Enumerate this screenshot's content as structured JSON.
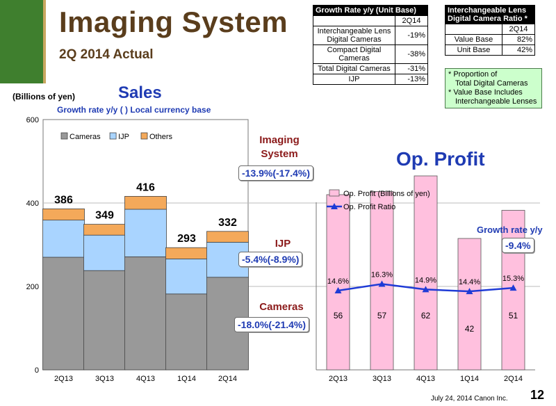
{
  "header": {
    "title": "Imaging System",
    "subtitle": "2Q 2014 Actual"
  },
  "growth_table": {
    "title": "Growth Rate y/y  (Unit Base)",
    "period": "2Q14",
    "rows": [
      {
        "label": "Interchangeable Lens Digital Cameras",
        "value": "-19%"
      },
      {
        "label": "Compact Digital Cameras",
        "value": "-38%"
      },
      {
        "label": "Total Digital Cameras",
        "value": "-31%"
      },
      {
        "label": "IJP",
        "value": "-13%"
      }
    ]
  },
  "ratio_table": {
    "title": "Interchangeable Lens Digital Camera Ratio *",
    "period": "2Q14",
    "rows": [
      {
        "label": "Value Base",
        "value": "82%"
      },
      {
        "label": "Unit Base",
        "value": "42%"
      }
    ]
  },
  "notes": [
    "* Proportion of",
    "Total Digital Cameras",
    "* Value Base Includes",
    "Interchangeable Lenses"
  ],
  "sales": {
    "unit": "(Billions of yen)",
    "title": "Sales",
    "subtitle": "Growth rate y/y  ( ) Local currency base"
  },
  "segments": {
    "imaging_label": "Imaging System",
    "imaging_growth": "-13.9%(-17.4%)",
    "ijp_label": "IJP",
    "ijp_growth": "-5.4%(-8.9%)",
    "cameras_label": "Cameras",
    "cameras_growth": "-18.0%(-21.4%)"
  },
  "op_profit": {
    "title": "Op. Profit",
    "growth_label": "Growth rate y/y",
    "growth_value": "-9.4%"
  },
  "chart_data": [
    {
      "type": "bar",
      "stacked": true,
      "categories": [
        "2Q13",
        "3Q13",
        "4Q13",
        "1Q14",
        "2Q14"
      ],
      "series": [
        {
          "name": "Cameras",
          "values": [
            270,
            238,
            271,
            182,
            222
          ],
          "color": "#999999"
        },
        {
          "name": "IJP",
          "values": [
            89,
            85,
            114,
            84,
            84
          ],
          "color": "#a9d4ff"
        },
        {
          "name": "Others",
          "values": [
            27,
            26,
            31,
            27,
            26
          ],
          "color": "#f4a95a"
        }
      ],
      "totals": [
        386,
        349,
        416,
        293,
        332
      ],
      "ylim": [
        0,
        600
      ],
      "yticks": [
        0,
        200,
        400,
        600
      ],
      "grid": true,
      "legend": "top-left"
    },
    {
      "type": "bar+line",
      "categories": [
        "2Q13",
        "3Q13",
        "4Q13",
        "1Q14",
        "2Q14"
      ],
      "series": [
        {
          "name": "Op. Profit (Billions of yen)",
          "values": [
            56,
            57,
            62,
            42,
            51
          ],
          "color": "#ffc0de"
        },
        {
          "name": "Op. Profit Ratio",
          "values": [
            14.6,
            16.3,
            14.9,
            14.4,
            15.3
          ],
          "labels": [
            "14.6%",
            "16.3%",
            "14.9%",
            "14.4%",
            "15.3%"
          ],
          "color": "#1f3bd6"
        }
      ],
      "legend": "top-left"
    }
  ],
  "footer": {
    "date": "July 24, 2014 Canon Inc.",
    "page": "12"
  }
}
